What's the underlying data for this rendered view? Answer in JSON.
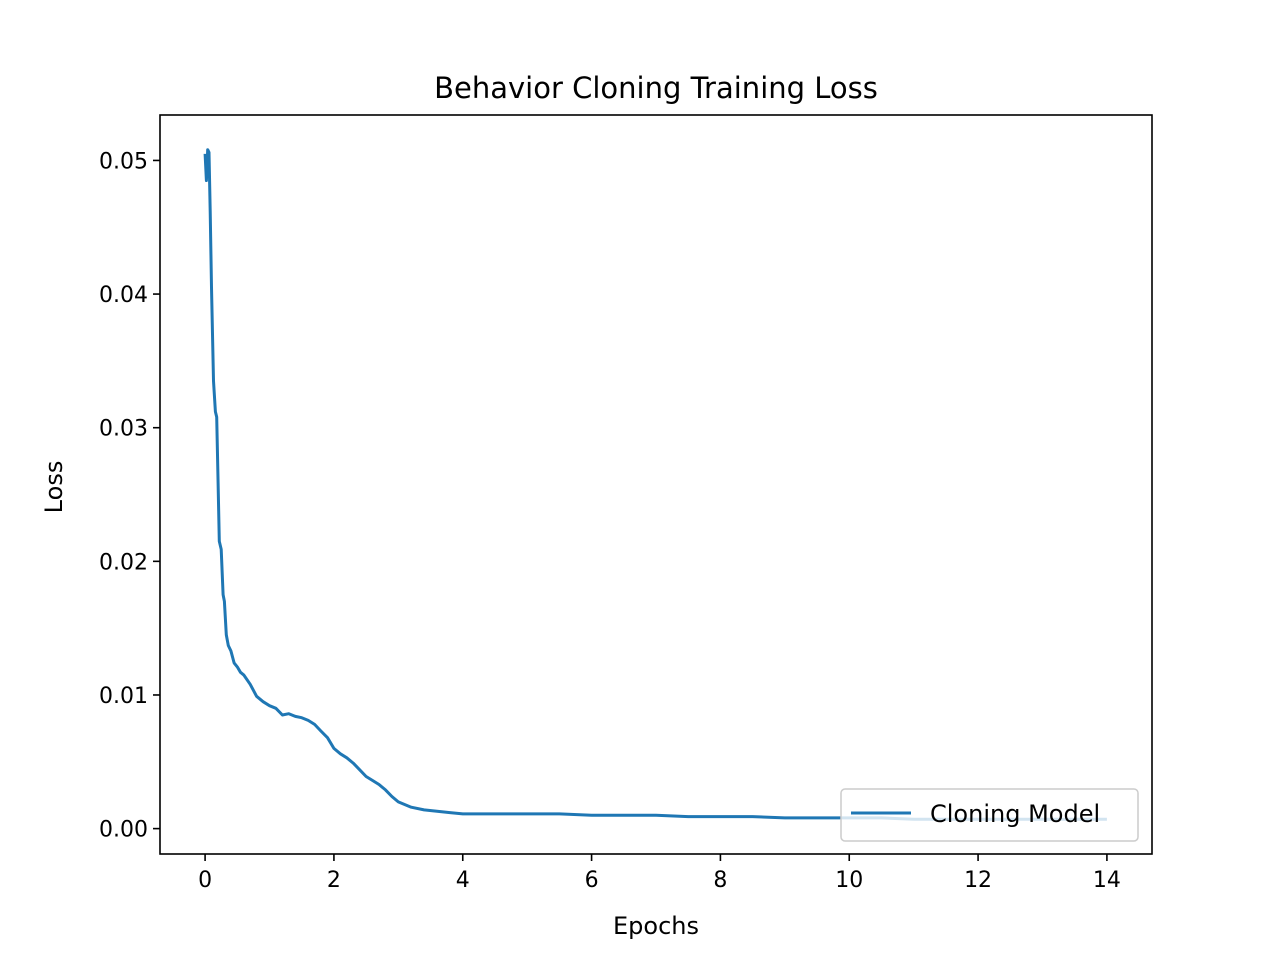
{
  "chart_data": {
    "type": "line",
    "title": "Behavior Cloning Training Loss",
    "xlabel": "Epochs",
    "ylabel": "Loss",
    "xlim": [
      -0.7,
      14.7
    ],
    "ylim": [
      -0.0019,
      0.0534
    ],
    "xticks": [
      0,
      2,
      4,
      6,
      8,
      10,
      12,
      14
    ],
    "xtick_labels": [
      "0",
      "2",
      "4",
      "6",
      "8",
      "10",
      "12",
      "14"
    ],
    "yticks": [
      0.0,
      0.01,
      0.02,
      0.03,
      0.04,
      0.05
    ],
    "ytick_labels": [
      "0.00",
      "0.01",
      "0.02",
      "0.03",
      "0.04",
      "0.05"
    ],
    "grid": false,
    "legend_position": "lower-right",
    "series": [
      {
        "name": "Cloning Model",
        "color": "#1f77b4",
        "x": [
          0.0,
          0.02,
          0.04,
          0.06,
          0.08,
          0.1,
          0.13,
          0.16,
          0.18,
          0.2,
          0.22,
          0.25,
          0.28,
          0.3,
          0.33,
          0.36,
          0.4,
          0.45,
          0.5,
          0.55,
          0.6,
          0.7,
          0.8,
          0.9,
          1.0,
          1.1,
          1.2,
          1.3,
          1.4,
          1.5,
          1.6,
          1.7,
          1.8,
          1.9,
          2.0,
          2.1,
          2.2,
          2.3,
          2.4,
          2.5,
          2.6,
          2.7,
          2.8,
          2.9,
          3.0,
          3.2,
          3.4,
          3.6,
          3.8,
          4.0,
          4.3,
          4.6,
          5.0,
          5.5,
          6.0,
          6.5,
          7.0,
          7.5,
          8.0,
          8.5,
          9.0,
          9.5,
          10.0,
          10.5,
          11.0,
          11.5,
          12.0,
          12.5,
          13.0,
          13.5,
          14.0
        ],
        "y": [
          0.0505,
          0.0485,
          0.0508,
          0.0506,
          0.0462,
          0.0405,
          0.0335,
          0.0312,
          0.0308,
          0.0262,
          0.0215,
          0.0209,
          0.0175,
          0.017,
          0.0145,
          0.0137,
          0.0133,
          0.0124,
          0.0121,
          0.0117,
          0.0115,
          0.0108,
          0.0099,
          0.0095,
          0.0092,
          0.009,
          0.0085,
          0.0086,
          0.0084,
          0.0083,
          0.0081,
          0.0078,
          0.0073,
          0.0068,
          0.006,
          0.0056,
          0.0053,
          0.0049,
          0.0044,
          0.0039,
          0.0036,
          0.0033,
          0.0029,
          0.0024,
          0.002,
          0.0016,
          0.0014,
          0.0013,
          0.0012,
          0.0011,
          0.0011,
          0.0011,
          0.0011,
          0.0011,
          0.001,
          0.001,
          0.001,
          0.0009,
          0.0009,
          0.0009,
          0.0008,
          0.0008,
          0.0008,
          0.0008,
          0.0007,
          0.0007,
          0.0007,
          0.0007,
          0.0007,
          0.0007,
          0.0007
        ]
      }
    ]
  }
}
